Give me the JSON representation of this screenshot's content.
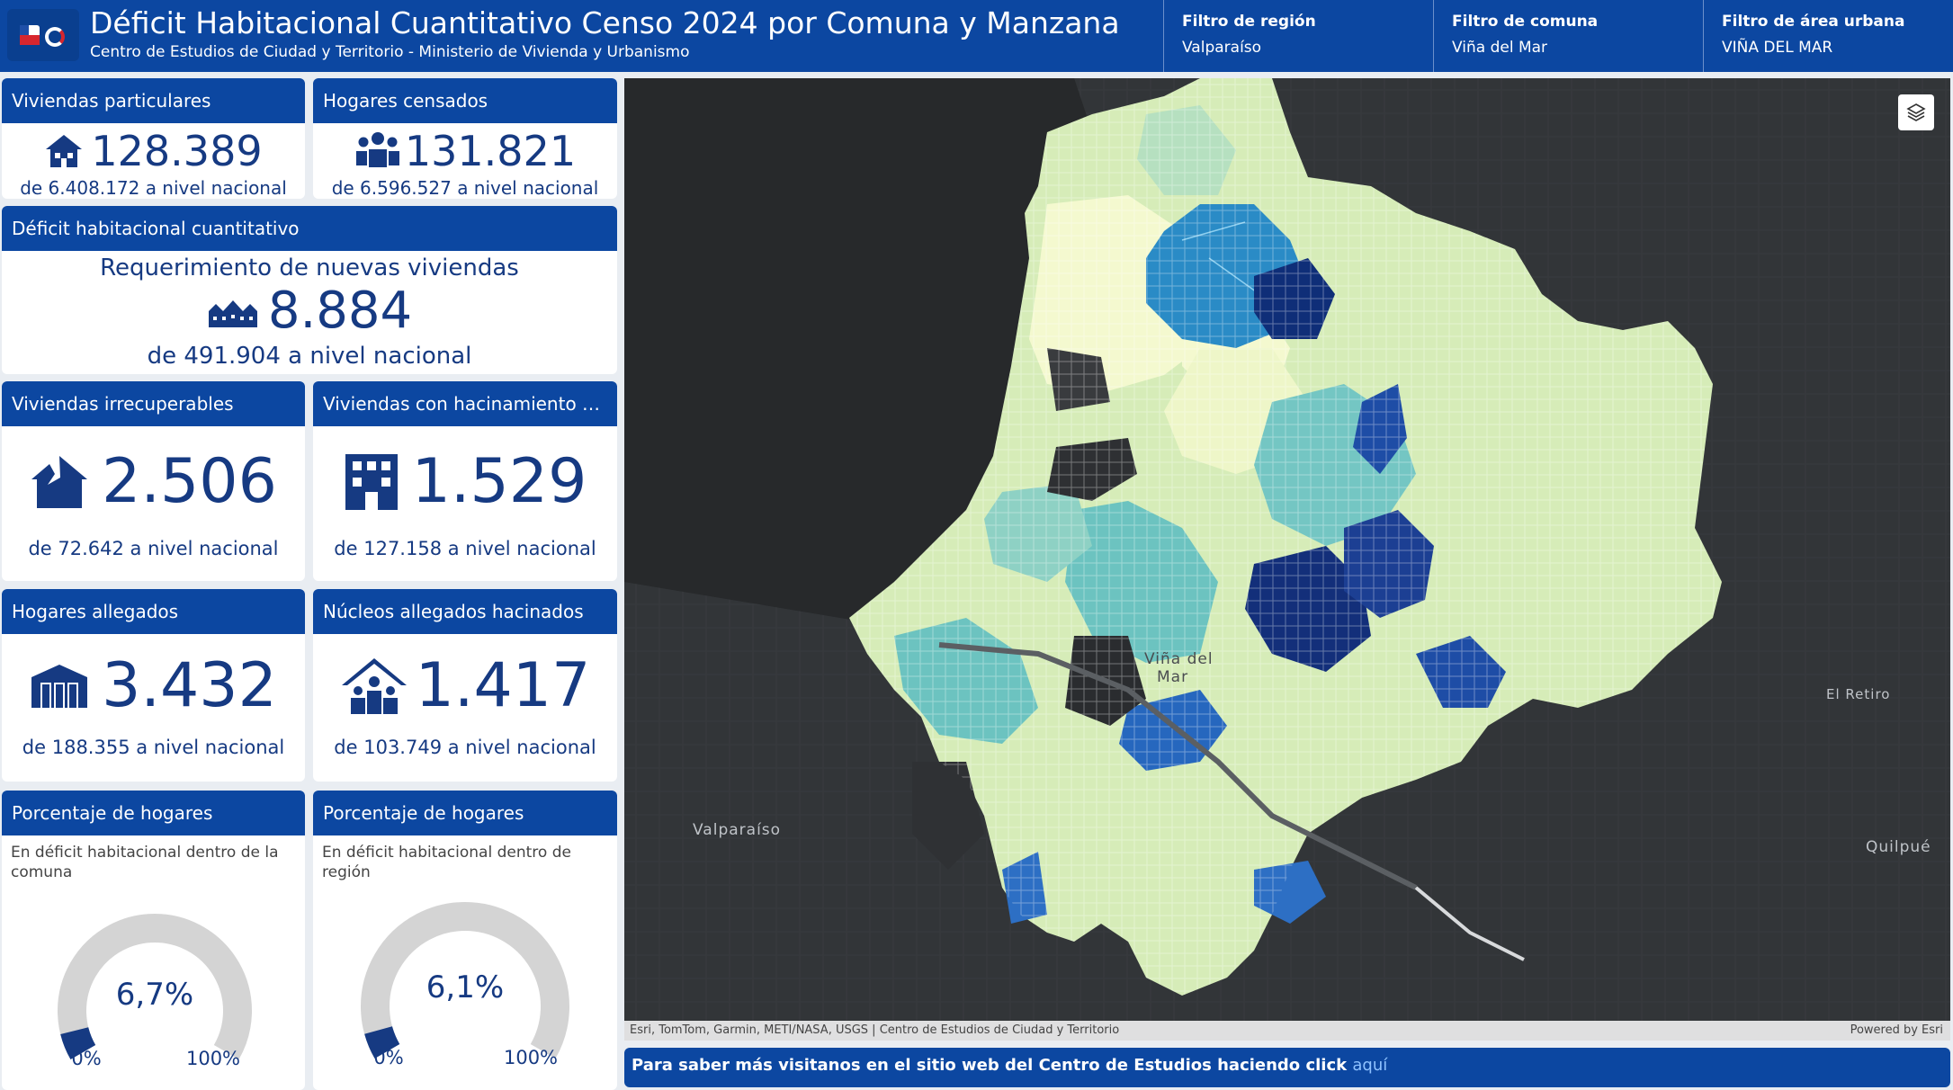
{
  "header": {
    "title": "Déficit Habitacional Cuantitativo Censo 2024 por Comuna y Manzana",
    "subtitle": "Centro de Estudios de Ciudad y Territorio - Ministerio de Vivienda y Urbanismo",
    "filters": [
      {
        "label": "Filtro de región",
        "value": "Valparaíso"
      },
      {
        "label": "Filtro de comuna",
        "value": "Viña del Mar"
      },
      {
        "label": "Filtro de área urbana",
        "value": "VIÑA DEL MAR"
      }
    ]
  },
  "cards": {
    "viviendas": {
      "title": "Viviendas particulares",
      "value": "128.389",
      "sub": "de 6.408.172 a nivel nacional",
      "icon": "house-icon"
    },
    "hogares": {
      "title": "Hogares censados",
      "value": "131.821",
      "sub": "de 6.596.527 a nivel nacional",
      "icon": "people-icon"
    },
    "deficit": {
      "title": "Déficit habitacional cuantitativo",
      "heading": "Requerimiento de nuevas viviendas",
      "value": "8.884",
      "sub": "de 491.904 a nivel nacional",
      "icon": "neighborhood-icon"
    },
    "irrecuperables": {
      "title": "Viviendas irrecuperables",
      "value": "2.506",
      "sub": "de 72.642 a nivel nacional",
      "icon": "broken-house-icon"
    },
    "hacinamiento": {
      "title": "Viviendas con hacinamiento no ...",
      "value": "1.529",
      "sub": "de 127.158 a nivel nacional",
      "icon": "building-icon"
    },
    "allegados": {
      "title": "Hogares allegados",
      "value": "3.432",
      "sub": "de 188.355 a nivel nacional",
      "icon": "warehouse-icon"
    },
    "nucleos": {
      "title": "Núcleos allegados hacinados",
      "value": "1.417",
      "sub": "de 103.749 a nivel nacional",
      "icon": "family-house-icon"
    }
  },
  "gauges": [
    {
      "title": "Porcentaje de hogares",
      "desc": "En déficit habitacional dentro de la comuna",
      "value": 6.7,
      "value_label": "6,7%",
      "min_label": "0%",
      "max_label": "100%"
    },
    {
      "title": "Porcentaje de hogares",
      "desc": "En déficit habitacional dentro de región",
      "value": 6.1,
      "value_label": "6,1%",
      "min_label": "0%",
      "max_label": "100%"
    }
  ],
  "map": {
    "places": [
      "Valparaíso",
      "Viña del",
      "Mar",
      "El Retiro",
      "Quilpué"
    ],
    "attribution": "Esri, TomTom, Garmin, METI/NASA, USGS | Centro de Estudios de Ciudad y Territorio",
    "powered": "Powered by Esri"
  },
  "footer": {
    "text": "Para saber más visitanos en el sitio web del Centro de Estudios haciendo click ",
    "link": "aquí"
  },
  "colors": {
    "accent": "#0c47a1",
    "navy": "#163a82"
  }
}
